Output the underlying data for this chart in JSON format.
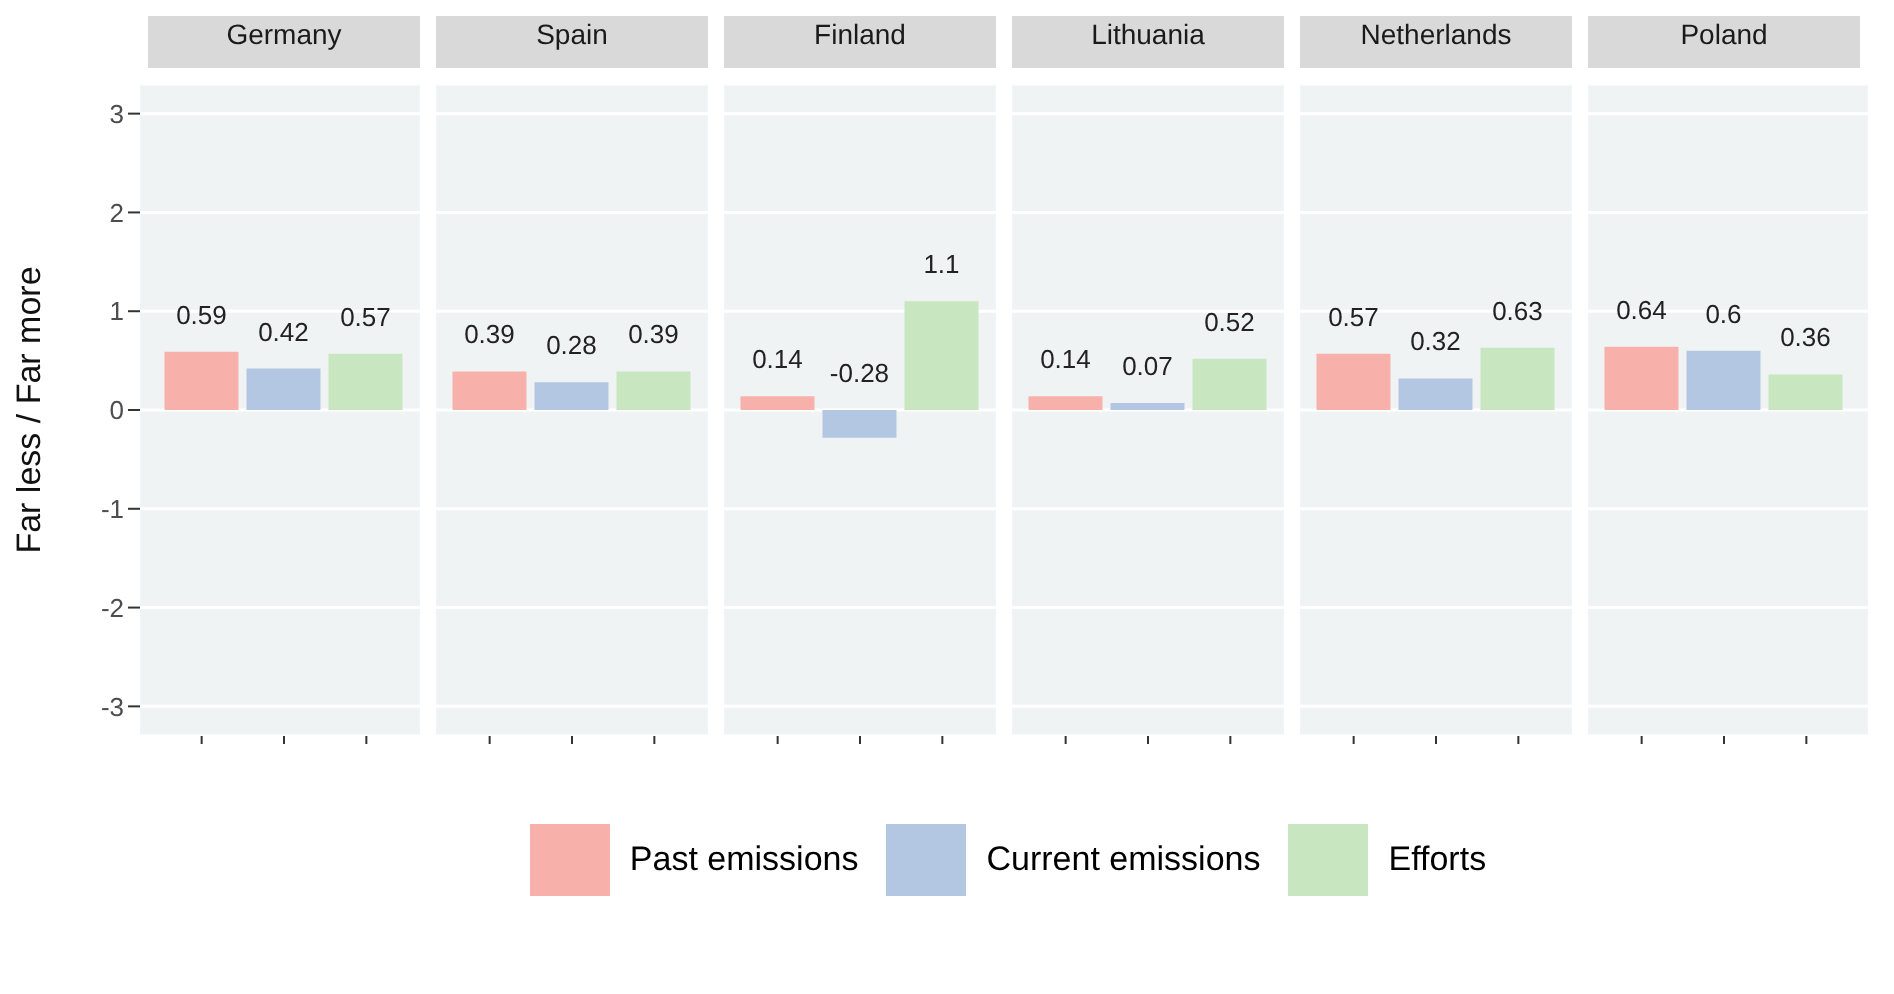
{
  "chart_data": {
    "type": "bar",
    "ylabel": "Far less / Far more",
    "categories": [
      "Germany",
      "Spain",
      "Finland",
      "Lithuania",
      "Netherlands",
      "Poland"
    ],
    "ylim": [
      -3.3,
      3.3
    ],
    "yticks": [
      -3,
      -2,
      -1,
      0,
      1,
      2,
      3
    ],
    "grid": true,
    "data_labels": true,
    "legend": "bottom",
    "series": [
      {
        "name": "Past emissions",
        "color": "#f8b1aa",
        "values": [
          0.59,
          0.39,
          0.14,
          0.14,
          0.57,
          0.64
        ]
      },
      {
        "name": "Current emissions",
        "color": "#b3c7e3",
        "values": [
          0.42,
          0.28,
          -0.28,
          0.07,
          0.32,
          0.6
        ]
      },
      {
        "name": "Efforts",
        "color": "#c8e6c0",
        "values": [
          0.57,
          0.39,
          1.1,
          0.52,
          0.63,
          0.36
        ]
      }
    ]
  }
}
